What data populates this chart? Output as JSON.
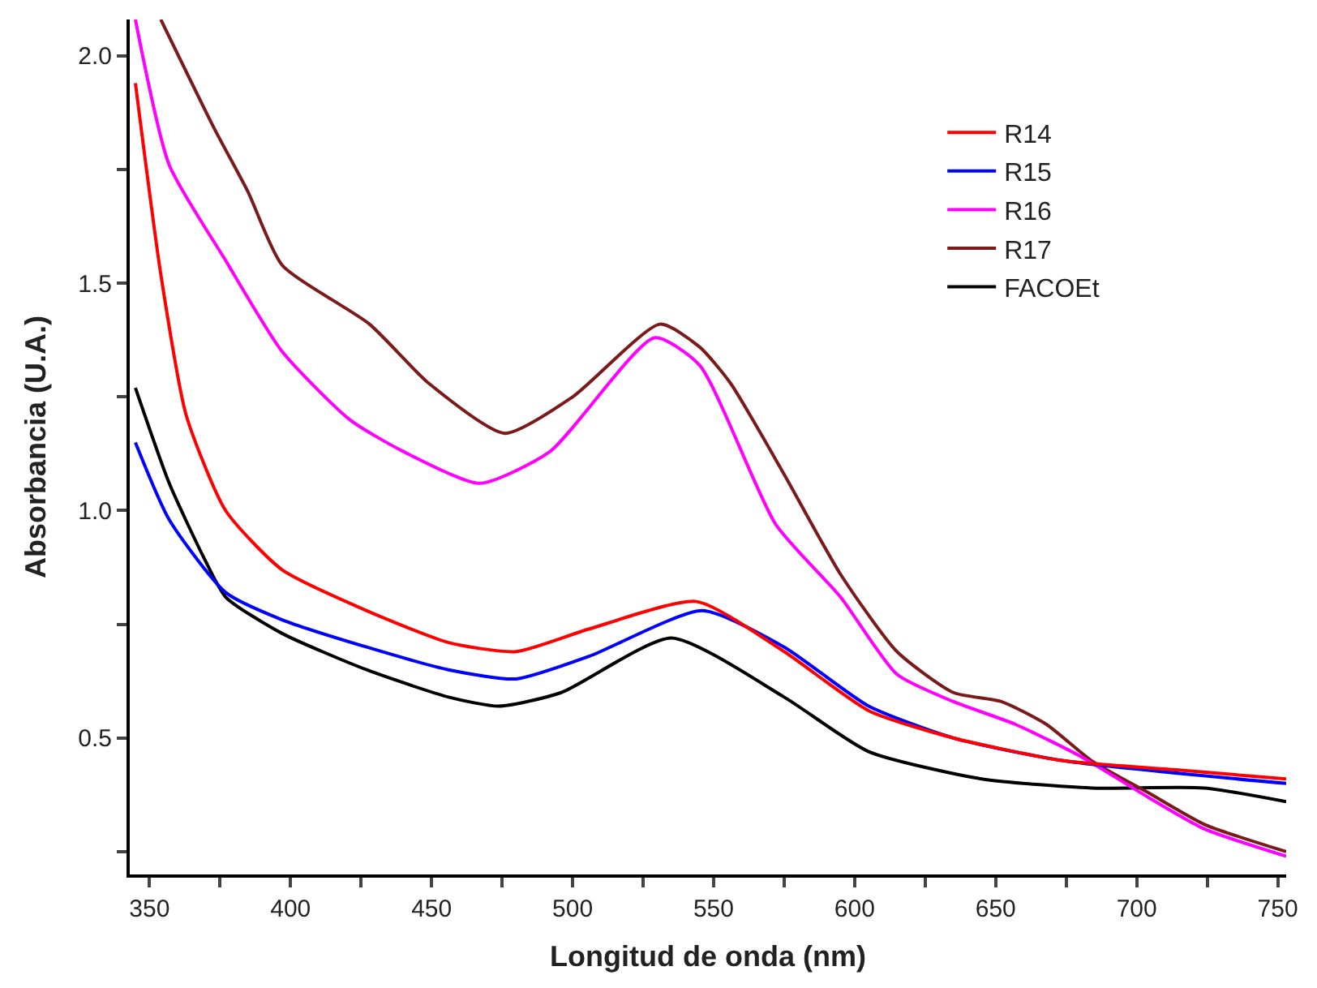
{
  "chart_data": {
    "type": "line",
    "xlabel": "Longitud de onda (nm)",
    "ylabel": "Absorbancia (U.A.)",
    "xlim": [
      343,
      753
    ],
    "ylim": [
      0.2,
      2.08
    ],
    "xticks": [
      350,
      {
        "value": 375,
        "label": null
      },
      400,
      {
        "value": 425,
        "label": null
      },
      450,
      {
        "value": 475,
        "label": null
      },
      500,
      {
        "value": 525,
        "label": null
      },
      550,
      {
        "value": 575,
        "label": null
      },
      600,
      {
        "value": 625,
        "label": null
      },
      650,
      {
        "value": 675,
        "label": null
      },
      700,
      {
        "value": 725,
        "label": null
      },
      750
    ],
    "yticks": [
      {
        "value": 0.25,
        "label": null
      },
      0.5,
      {
        "value": 0.75,
        "label": null
      },
      {
        "value": 1,
        "label": "1.0"
      },
      {
        "value": 1.25,
        "label": null
      },
      1.5,
      {
        "value": 1.75,
        "label": null
      },
      {
        "value": 2,
        "label": "2.0"
      }
    ],
    "legend": "top right",
    "marker": "none",
    "line_style": "solid",
    "series": [
      {
        "name": "R14",
        "color": "#ff0000",
        "x": [
          345,
          354,
          363,
          377,
          397,
          427,
          456,
          480,
          506,
          544,
          575,
          605,
          635,
          674,
          714,
          753
        ],
        "values": [
          1.94,
          1.52,
          1.21,
          1.0,
          0.87,
          0.78,
          0.71,
          0.69,
          0.74,
          0.8,
          0.69,
          0.56,
          0.5,
          0.45,
          0.43,
          0.41
        ]
      },
      {
        "name": "R15",
        "color": "#0000ff",
        "x": [
          345,
          357,
          377,
          397,
          427,
          456,
          480,
          506,
          546,
          575,
          605,
          635,
          674,
          753
        ],
        "values": [
          1.15,
          0.98,
          0.82,
          0.76,
          0.7,
          0.65,
          0.63,
          0.68,
          0.78,
          0.7,
          0.57,
          0.5,
          0.45,
          0.4
        ]
      },
      {
        "name": "R16",
        "color": "#ff00ff",
        "x": [
          345,
          357,
          377,
          397,
          421,
          440,
          467,
          492,
          529,
          545,
          572,
          595,
          615,
          635,
          657,
          680,
          704,
          724,
          753
        ],
        "values": [
          2.08,
          1.76,
          1.55,
          1.35,
          1.2,
          1.13,
          1.06,
          1.13,
          1.38,
          1.32,
          0.97,
          0.81,
          0.64,
          0.58,
          0.53,
          0.46,
          0.37,
          0.3,
          0.24
        ]
      },
      {
        "name": "R17",
        "color": "#7b1a1a",
        "x": [
          354,
          373,
          385,
          397,
          428,
          449,
          476,
          500,
          531,
          545,
          556,
          575,
          595,
          615,
          635,
          652,
          668,
          684,
          704,
          724,
          753
        ],
        "values": [
          2.08,
          1.84,
          1.7,
          1.54,
          1.41,
          1.28,
          1.17,
          1.25,
          1.41,
          1.36,
          1.28,
          1.08,
          0.86,
          0.69,
          0.6,
          0.58,
          0.53,
          0.45,
          0.38,
          0.31,
          0.25
        ]
      },
      {
        "name": "FACOEt",
        "color": "#000000",
        "x": [
          345,
          357,
          369,
          377,
          397,
          427,
          456,
          474,
          496,
          535,
          575,
          605,
          645,
          684,
          724,
          753
        ],
        "values": [
          1.27,
          1.06,
          0.9,
          0.81,
          0.73,
          0.65,
          0.59,
          0.57,
          0.6,
          0.72,
          0.59,
          0.47,
          0.41,
          0.39,
          0.39,
          0.36
        ]
      }
    ]
  }
}
